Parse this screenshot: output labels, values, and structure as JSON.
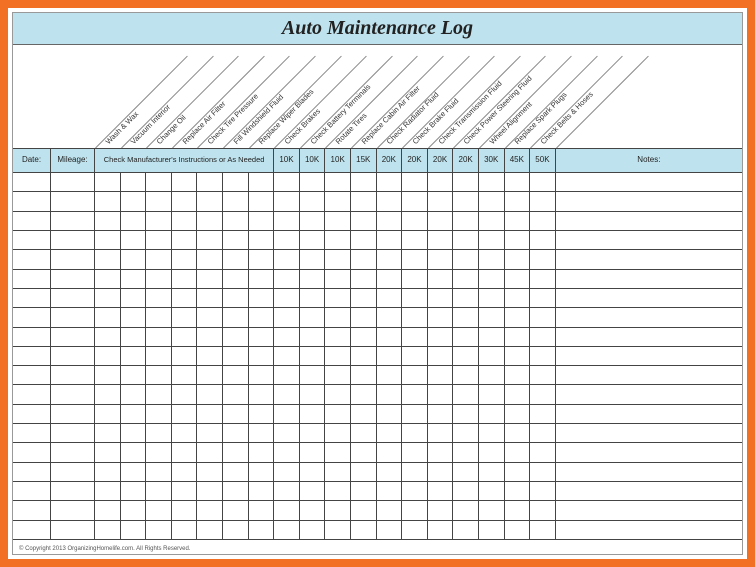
{
  "title": "Auto Maintenance Log",
  "copyright": "© Copyright 2013 OrganizingHomelife.com. All Rights Reserved.",
  "header": {
    "date": "Date:",
    "mileage": "Mileage:",
    "merged_instruction": "Check Manufacturer's Instructions or As Needed",
    "notes": "Notes:"
  },
  "diagonal_labels": [
    "Wash & Wax",
    "Vacuum Interior",
    "Change Oil",
    "Replace Air Filter",
    "Check Tire Pressure",
    "Fill Windshield Fluid",
    "Replace Wiper Blades",
    "Check Brakes",
    "Check Battery Terminals",
    "Rotate Tires",
    "Replace Cabin Air Filter",
    "Check Radiator Fluid",
    "Check Brake Fluid",
    "Check Transmission Fluid",
    "Check Power Steering Fluid",
    "Wheel Alignment",
    "Replace Spark Plugs",
    "Check Belts & Hoses"
  ],
  "interval_labels": [
    "10K",
    "10K",
    "10K",
    "15K",
    "20K",
    "20K",
    "20K",
    "20K",
    "30K",
    "45K",
    "50K"
  ],
  "colors": {
    "frame": "#f27023",
    "band": "#bfe3ee",
    "border": "#444444",
    "background": "#ffffff"
  },
  "layout": {
    "col_widths": {
      "date": 38,
      "mileage": 44,
      "narrow": 25.6,
      "notes_min": 110
    },
    "num_narrow_cols": 18,
    "merged_span_cols": 7,
    "num_data_rows": 19
  }
}
